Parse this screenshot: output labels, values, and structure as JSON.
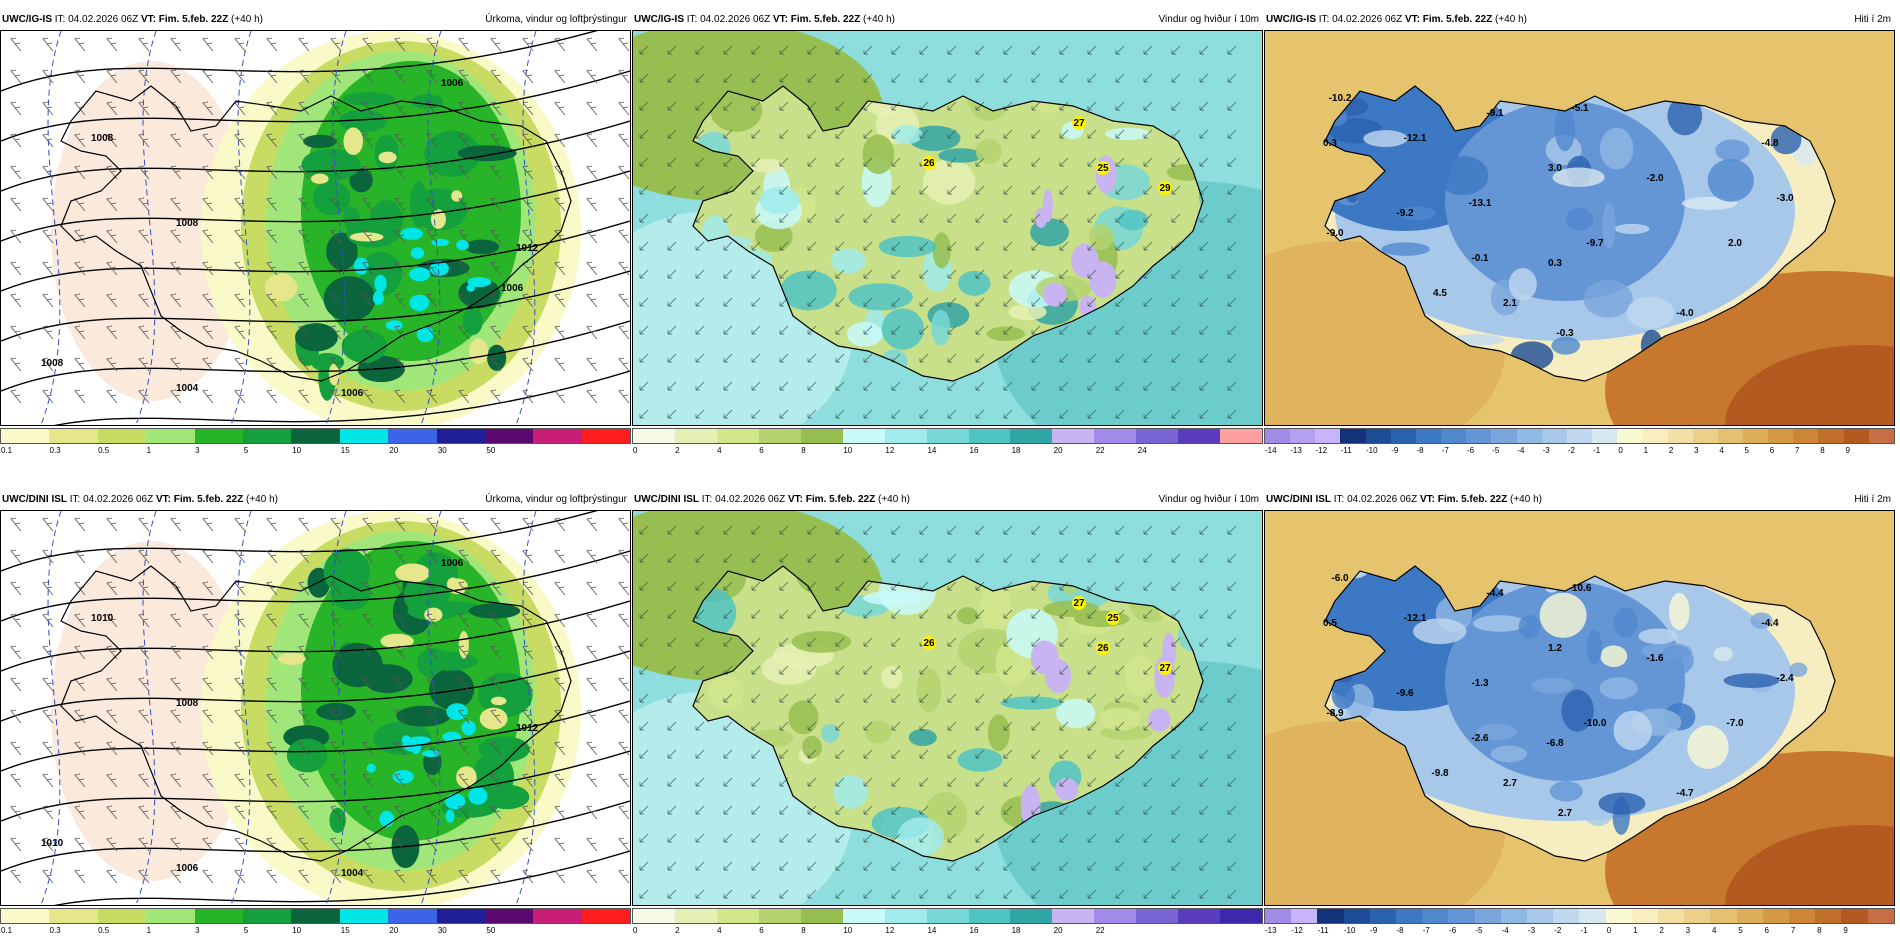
{
  "panels": [
    {
      "model": "UWC/IG-IS",
      "it_label": "IT:",
      "it_value": "04.02.2026 06Z",
      "vt_label": "VT:",
      "vt_value": "Fim. 5.feb. 22Z",
      "lead": "(+40 h)",
      "title": "Úrkoma, vindur og loftþrýstingur",
      "kind": "precip",
      "colorbar": [
        "#fafac8",
        "#e6e68c",
        "#c8dc64",
        "#a0e678",
        "#28b428",
        "#14a03c",
        "#0a643c",
        "#00e6e6",
        "#3c64e6",
        "#1e1e96",
        "#5a0a6e",
        "#c81e78",
        "#ff1e1e"
      ],
      "ticks": [
        "0.1",
        "0.3",
        "0.5",
        "1",
        "3",
        "5",
        "10",
        "15",
        "20",
        "30",
        "50"
      ],
      "point_labels": [],
      "isobar_labels": [
        "1008",
        "1008",
        "1006",
        "1012",
        "1008",
        "1006",
        "1004",
        "1006"
      ]
    },
    {
      "model": "UWC/IG-IS",
      "it_label": "IT:",
      "it_value": "04.02.2026 06Z",
      "vt_label": "VT:",
      "vt_value": "Fim. 5.feb. 22Z",
      "lead": "(+40 h)",
      "title": "Vindur og hviður í 10m",
      "kind": "wind",
      "colorbar": [
        "#f5fae6",
        "#e6f0b4",
        "#d2e68c",
        "#b4d26e",
        "#96be50",
        "#c8fafa",
        "#a0ebeb",
        "#78d7d7",
        "#50c3c3",
        "#32a5a5",
        "#c8b4f0",
        "#a08ce6",
        "#7864d2",
        "#5a3cbe",
        "#ffa0a0"
      ],
      "ticks": [
        "0",
        "2",
        "4",
        "6",
        "8",
        "10",
        "12",
        "14",
        "16",
        "18",
        "20",
        "22",
        "24"
      ],
      "point_labels": [
        "27",
        "26",
        "25",
        "29"
      ],
      "isobar_labels": []
    },
    {
      "model": "UWC/IG-IS",
      "it_label": "IT:",
      "it_value": "04.02.2026 06Z",
      "vt_label": "VT:",
      "vt_value": "Fim. 5.feb. 22Z",
      "lead": "(+40 h)",
      "title": "Hiti í 2m",
      "kind": "temp",
      "colorbar": [
        "#a08ce6",
        "#b4a0f0",
        "#c8b4fa",
        "#14327a",
        "#1e4b96",
        "#2a62b0",
        "#3c78c3",
        "#5088ce",
        "#6496d6",
        "#7aa6dc",
        "#90b8e4",
        "#a8c8ea",
        "#c0d8f0",
        "#d8e8f0",
        "#fafad2",
        "#f8eec0",
        "#f2e0a4",
        "#ecd08a",
        "#e4c070",
        "#dcae5a",
        "#d49a44",
        "#cc8636",
        "#c0702a",
        "#b45a20",
        "#c86e46"
      ],
      "ticks": [
        "-14",
        "-13",
        "-12",
        "-11",
        "-10",
        "-9",
        "-8",
        "-7",
        "-6",
        "-5",
        "-4",
        "-3",
        "-2",
        "-1",
        "0",
        "1",
        "2",
        "3",
        "4",
        "5",
        "6",
        "7",
        "8",
        "9"
      ],
      "point_labels": [
        "-10.2",
        "-12.1",
        "-9.1",
        "-5.1",
        "0.3",
        "3.0",
        "-4.8",
        "-2.0",
        "-13.1",
        "-9.2",
        "-3.0",
        "-9.0",
        "-9.7",
        "2.0",
        "-0.1",
        "0.3",
        "4.5",
        "2.1",
        "-4.0",
        "-0.3"
      ],
      "isobar_labels": []
    },
    {
      "model": "UWC/DINI ISL",
      "it_label": "IT:",
      "it_value": "04.02.2026 06Z",
      "vt_label": "VT:",
      "vt_value": "Fim. 5.feb. 22Z",
      "lead": "(+40 h)",
      "title": "Úrkoma, vindur og loftþrýstingur",
      "kind": "precip",
      "colorbar": [
        "#fafac8",
        "#e6e68c",
        "#c8dc64",
        "#a0e678",
        "#28b428",
        "#14a03c",
        "#0a643c",
        "#00e6e6",
        "#3c64e6",
        "#1e1e96",
        "#5a0a6e",
        "#c81e78",
        "#ff1e1e"
      ],
      "ticks": [
        "0.1",
        "0.3",
        "0.5",
        "1",
        "3",
        "5",
        "10",
        "15",
        "20",
        "30",
        "50"
      ],
      "point_labels": [],
      "isobar_labels": [
        "1010",
        "1008",
        "1006",
        "1012",
        "1010",
        "1004",
        "1006"
      ]
    },
    {
      "model": "UWC/DINI ISL",
      "it_label": "IT:",
      "it_value": "04.02.2026 06Z",
      "vt_label": "VT:",
      "vt_value": "Fim. 5.feb. 22Z",
      "lead": "(+40 h)",
      "title": "Vindur og hviður í 10m",
      "kind": "wind",
      "colorbar": [
        "#f5fae6",
        "#e6f0b4",
        "#d2e68c",
        "#b4d26e",
        "#96be50",
        "#c8fafa",
        "#a0ebeb",
        "#78d7d7",
        "#50c3c3",
        "#32a5a5",
        "#c8b4f0",
        "#a08ce6",
        "#7864d2",
        "#5a3cbe",
        "#3c28aa"
      ],
      "ticks": [
        "0",
        "2",
        "4",
        "6",
        "8",
        "10",
        "12",
        "14",
        "16",
        "18",
        "20",
        "22"
      ],
      "point_labels": [
        "27",
        "26",
        "26",
        "27",
        "25"
      ],
      "isobar_labels": []
    },
    {
      "model": "UWC/DINI ISL",
      "it_label": "IT:",
      "it_value": "04.02.2026 06Z",
      "vt_label": "VT:",
      "vt_value": "Fim. 5.feb. 22Z",
      "lead": "(+40 h)",
      "title": "Hiti í 2m",
      "kind": "temp",
      "colorbar": [
        "#a08ce6",
        "#c8b4fa",
        "#14327a",
        "#1e4b96",
        "#2a62b0",
        "#3c78c3",
        "#5088ce",
        "#6496d6",
        "#7aa6dc",
        "#90b8e4",
        "#a8c8ea",
        "#c0d8f0",
        "#d8e8f0",
        "#fafad2",
        "#f8eec0",
        "#f2e0a4",
        "#ecd08a",
        "#e4c070",
        "#dcae5a",
        "#d49a44",
        "#cc8636",
        "#c0702a",
        "#b45a20",
        "#c86e46"
      ],
      "ticks": [
        "-13",
        "-12",
        "-11",
        "-10",
        "-9",
        "-8",
        "-7",
        "-6",
        "-5",
        "-4",
        "-3",
        "-2",
        "-1",
        "0",
        "1",
        "2",
        "3",
        "4",
        "5",
        "6",
        "7",
        "8",
        "9"
      ],
      "point_labels": [
        "-6.0",
        "-12.1",
        "-4.4",
        "-10.6",
        "0.5",
        "1.2",
        "-4.4",
        "-1.6",
        "-1.3",
        "-9.6",
        "-2.4",
        "-8.9",
        "-10.0",
        "-7.0",
        "-2.6",
        "-6.8",
        "-9.8",
        "2.7",
        "-4.7",
        "2.7"
      ],
      "isobar_labels": []
    }
  ]
}
